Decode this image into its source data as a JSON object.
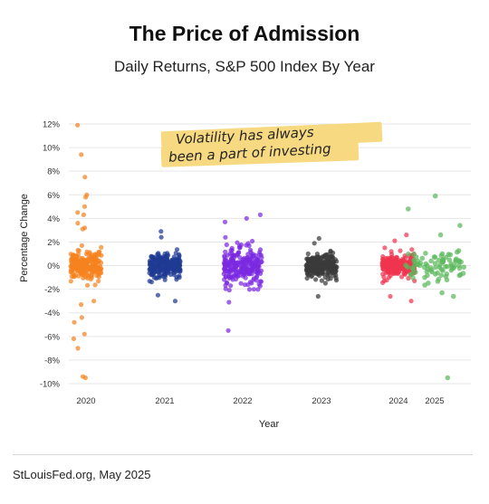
{
  "page": {
    "title": "The Price of Admission",
    "subtitle": "Daily Returns, S&P 500 Index By Year",
    "footer": "StLouisFed.org, May 2025"
  },
  "chart_data": {
    "type": "scatter",
    "style": "strip / jitter plot, one dot per trading day",
    "xlabel": "Year",
    "ylabel": "Percentage Change",
    "ylim": [
      -10,
      12
    ],
    "yticks": [
      -10,
      -8,
      -6,
      -4,
      -2,
      0,
      2,
      4,
      6,
      8,
      10,
      12
    ],
    "ytick_format": "{}%",
    "grid": "horizontal",
    "annotation": [
      "Volatility has always",
      "been a part of investing"
    ],
    "categories": [
      "2020",
      "2021",
      "2022",
      "2023",
      "2024",
      "2025"
    ],
    "series": [
      {
        "category": "2020",
        "color": "#f5821f",
        "min": -9.5,
        "max": 11.9,
        "notable_values": [
          11.9,
          9.4,
          7.5,
          6.0,
          5.8,
          5.0,
          4.5,
          4.3,
          3.6,
          3.2,
          3.1,
          -3.0,
          -3.3,
          -4.4,
          -4.8,
          -5.8,
          -6.2,
          -7.0,
          -9.5,
          -9.4
        ]
      },
      {
        "category": "2021",
        "color": "#1f3a93",
        "min": -3.0,
        "max": 2.9,
        "notable_values": [
          2.9,
          2.4,
          -2.5,
          -3.0
        ]
      },
      {
        "category": "2022",
        "color": "#7b2ae0",
        "min": -5.5,
        "max": 4.3,
        "notable_values": [
          4.3,
          4.0,
          3.7,
          -3.1,
          -5.5
        ]
      },
      {
        "category": "2023",
        "color": "#3a3a3a",
        "min": -2.6,
        "max": 2.3,
        "notable_values": [
          2.3,
          1.9,
          -2.6
        ]
      },
      {
        "category": "2024",
        "color": "#f0354f",
        "min": -3.0,
        "max": 2.6,
        "notable_values": [
          2.6,
          2.1,
          -2.6,
          -3.0
        ]
      },
      {
        "category": "2025",
        "color": "#5cb85c",
        "min": -9.5,
        "max": 5.9,
        "notable_values": [
          5.9,
          4.8,
          3.4,
          2.6,
          -2.3,
          -2.6,
          -9.5
        ]
      }
    ]
  }
}
